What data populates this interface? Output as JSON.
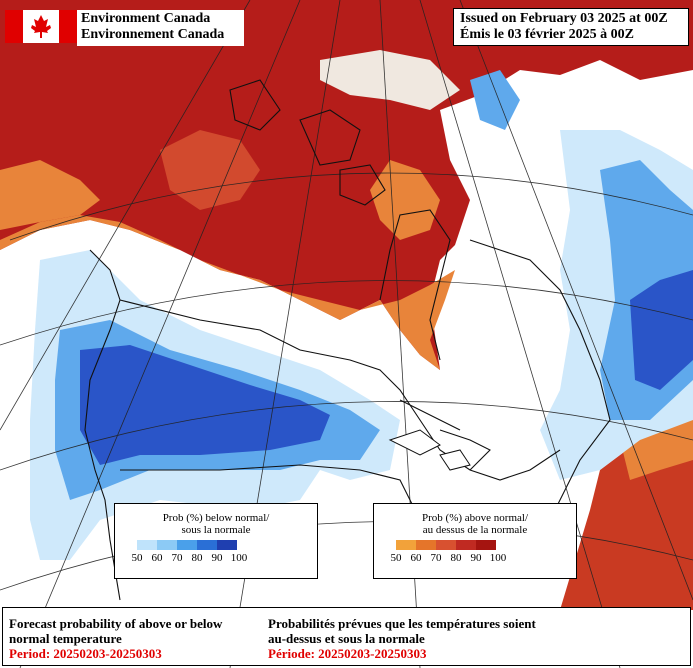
{
  "header": {
    "agency_en": "Environment Canada",
    "agency_fr": "Environnement Canada",
    "issued_en": "Issued on February 03 2025 at 00Z",
    "issued_fr": "Émis le 03 février 2025 à 00Z"
  },
  "legend_below": {
    "title_en": "Prob (%) below normal/",
    "title_fr": "sous la normale",
    "ticks": [
      "50",
      "60",
      "70",
      "80",
      "90",
      "100"
    ],
    "colors": [
      "#bfe3fb",
      "#8ccaf5",
      "#4aa0ea",
      "#2a6fd6",
      "#1f3fb0"
    ]
  },
  "legend_above": {
    "title_en": "Prob (%) above normal/",
    "title_fr": "au dessus de la normale",
    "ticks": [
      "50",
      "60",
      "70",
      "80",
      "90",
      "100"
    ],
    "colors": [
      "#f2a23a",
      "#e5752a",
      "#d85130",
      "#c02a22",
      "#a51410"
    ]
  },
  "footer": {
    "left_line1": "Forecast probability of above or below",
    "left_line2": "normal temperature",
    "left_period": "Period: 20250203-20250303",
    "right_line1": "Probabilités prévues que les températures soient",
    "right_line2": "au-dessus et sous la normale",
    "right_period": "Période: 20250203-20250303"
  },
  "map_colors": {
    "above_strong": "#b51d1a",
    "above_mid": "#d24a2e",
    "above_light": "#e8843a",
    "below_light": "#cfe9fb",
    "below_mid": "#5fa9ec",
    "below_strong": "#2a55c8"
  }
}
